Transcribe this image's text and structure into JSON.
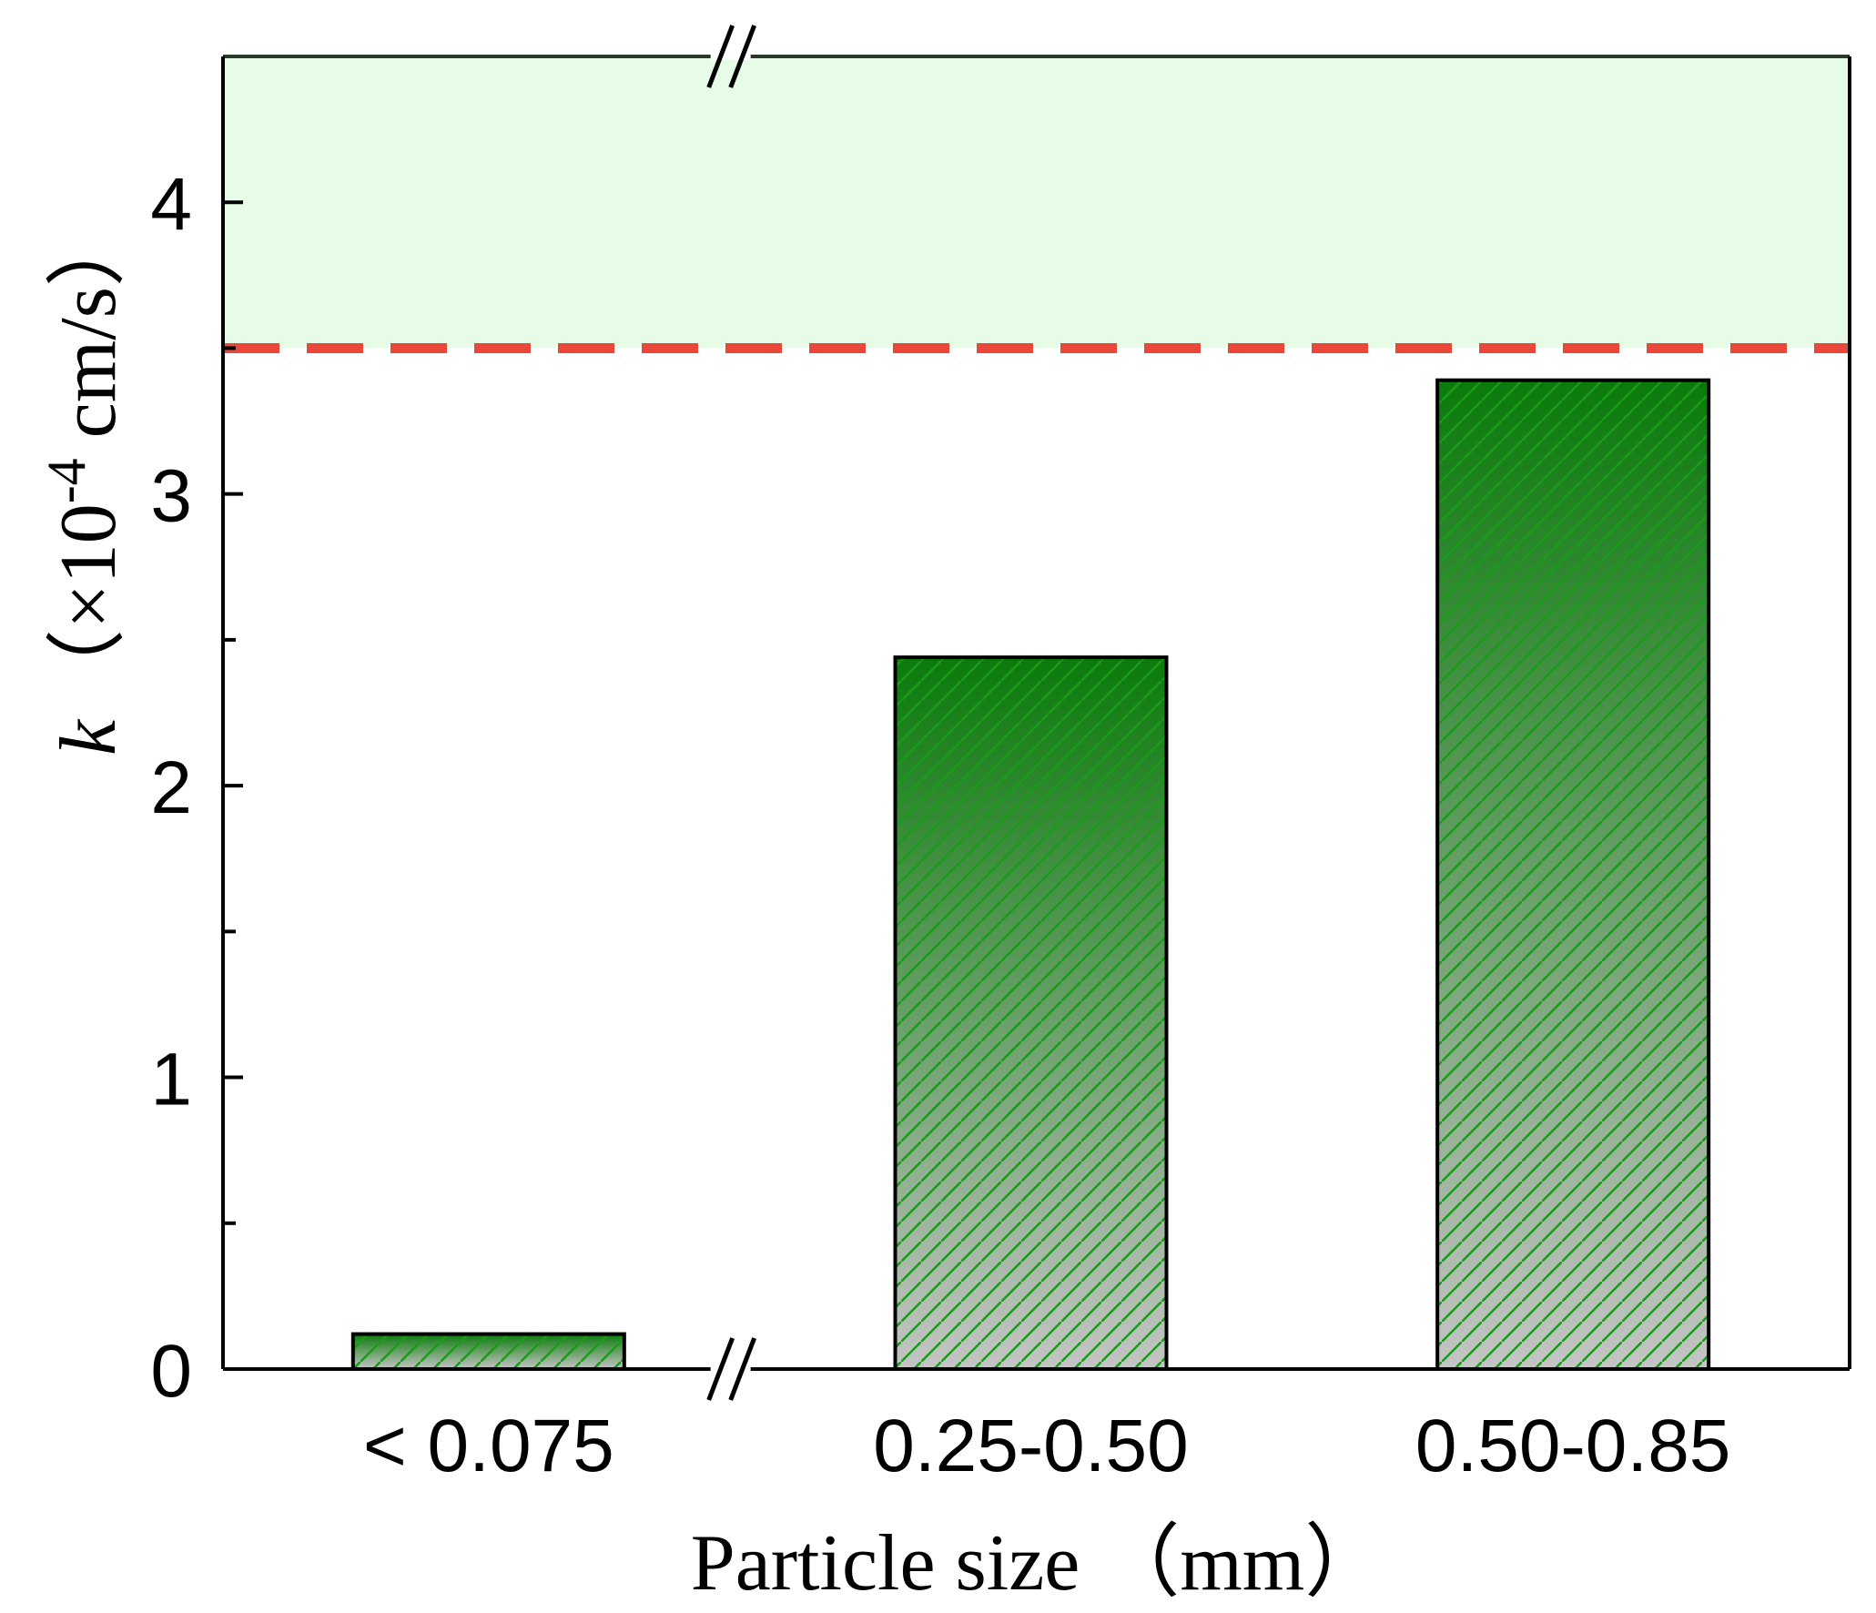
{
  "chart_data": {
    "type": "bar",
    "categories": [
      "< 0.075",
      "0.25-0.50",
      "0.50-0.85"
    ],
    "values": [
      0.12,
      2.44,
      3.39
    ],
    "ylim": [
      0,
      4.5
    ],
    "yticks": [
      "0",
      "1",
      "2",
      "3",
      "4"
    ],
    "ytick_values": [
      0,
      1,
      2,
      3,
      4
    ],
    "yminor_ticks": [
      0.5,
      1.5,
      2.5,
      3.5
    ],
    "ylabel": {
      "k": "k",
      "prefix": "（×10",
      "exponent": "-4",
      "suffix": " cm/s）"
    },
    "xlabel": "Particle size （mm）",
    "threshold": {
      "value": 3.5,
      "line_color": "#e8473a",
      "region_color": "#e6fce6"
    },
    "axis_break": "//",
    "grid": false,
    "bar_style": {
      "top_color": "#0b7a0b",
      "bottom_color": "#c4c4c4",
      "hatch_color": "#1a9a1a",
      "edge_color": "#000000"
    }
  }
}
